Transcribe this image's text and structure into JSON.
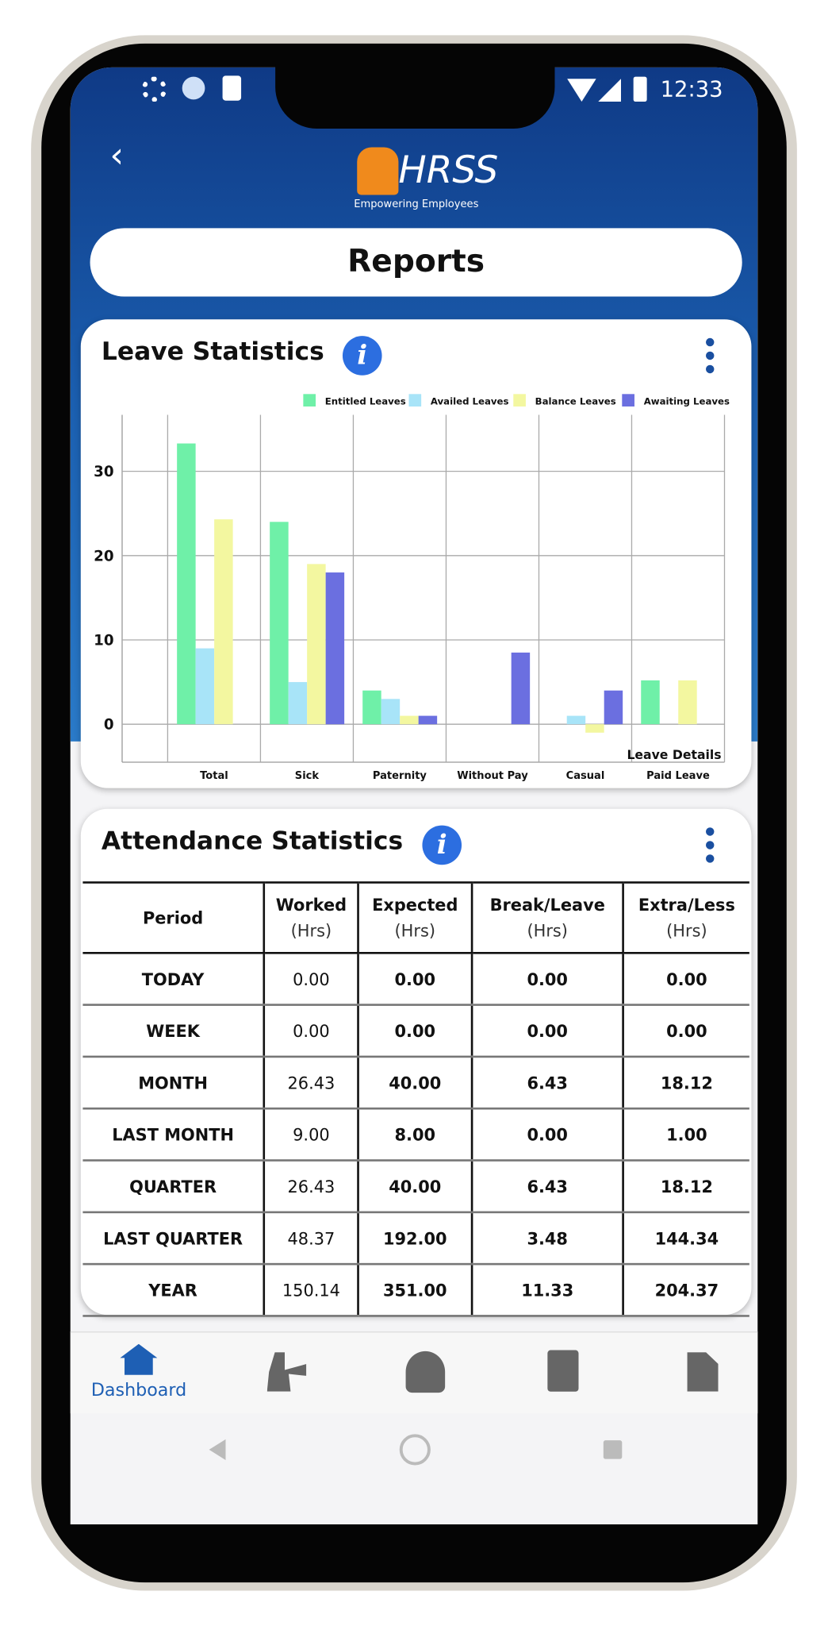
{
  "status_bar": {
    "time": "12:33"
  },
  "header": {
    "logo": "HRSS",
    "tagline": "Empowering Employees",
    "title": "Reports"
  },
  "leave_card": {
    "title": "Leave Statistics"
  },
  "chart_data": {
    "type": "bar",
    "categories": [
      "Total",
      "Sick",
      "Paternity",
      "Without Pay",
      "Casual",
      "Paid Leave"
    ],
    "series": [
      {
        "name": "Entitled Leaves",
        "color": "#6ff0a8",
        "values": [
          33.3,
          24,
          4,
          0,
          0,
          5.2
        ]
      },
      {
        "name": "Availed Leaves",
        "color": "#a8e4f8",
        "values": [
          9,
          5,
          3,
          0,
          1,
          0
        ]
      },
      {
        "name": "Balance Leaves",
        "color": "#f3f7a0",
        "values": [
          24.3,
          19,
          1,
          0,
          -1,
          5.2
        ]
      },
      {
        "name": "Awaiting Leaves",
        "color": "#6b6fe0",
        "values": [
          0,
          18,
          1,
          8.5,
          4,
          0
        ]
      }
    ],
    "x_label": "Leave Details",
    "ylim": [
      -4.5,
      36.7
    ],
    "yticks": [
      0,
      10,
      20,
      30
    ],
    "grid": true,
    "legend": "top-right"
  },
  "attendance_card": {
    "title": "Attendance Statistics"
  },
  "table": {
    "header": [
      {
        "name": "Period"
      },
      {
        "name": "Worked",
        "unit": "(Hrs)"
      },
      {
        "name": "Expected",
        "unit": "(Hrs)"
      },
      {
        "name": "Break/Leave",
        "unit": "(Hrs)"
      },
      {
        "name": "Extra/Less",
        "unit": "(Hrs)"
      }
    ],
    "rows": [
      [
        "TODAY",
        "0.00",
        "0.00",
        "0.00",
        "0.00"
      ],
      [
        "WEEK",
        "0.00",
        "0.00",
        "0.00",
        "0.00"
      ],
      [
        "MONTH",
        "26.43",
        "40.00",
        "6.43",
        "18.12"
      ],
      [
        "LAST MONTH",
        "9.00",
        "8.00",
        "0.00",
        "1.00"
      ],
      [
        "QUARTER",
        "26.43",
        "40.00",
        "6.43",
        "18.12"
      ],
      [
        "LAST QUARTER",
        "48.37",
        "192.00",
        "3.48",
        "144.34"
      ],
      [
        "YEAR",
        "150.14",
        "351.00",
        "11.33",
        "204.37"
      ]
    ]
  },
  "nav": {
    "active": "Dashboard"
  }
}
